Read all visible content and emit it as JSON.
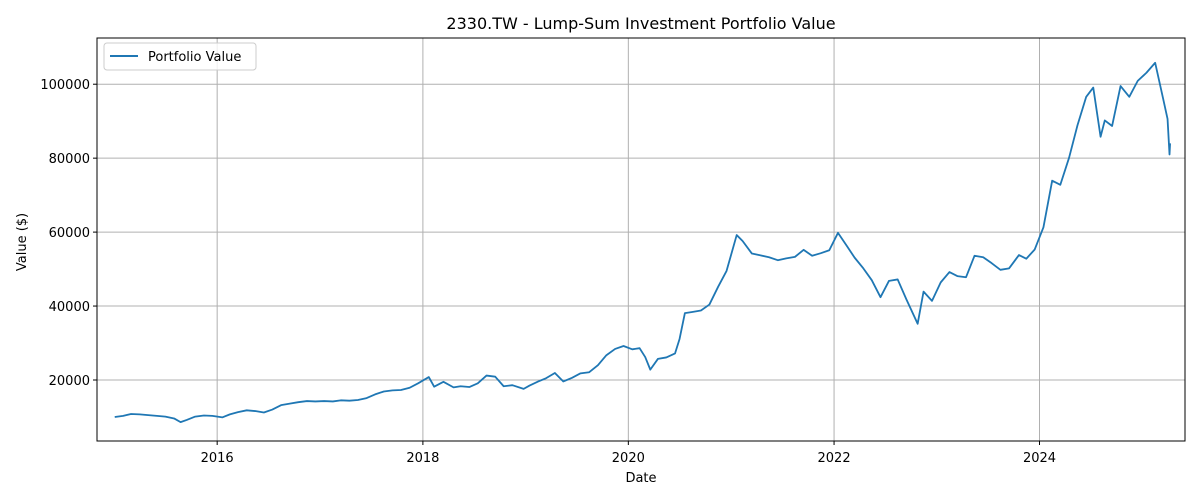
{
  "chart_data": {
    "type": "line",
    "title": "2330.TW - Lump-Sum Investment Portfolio Value",
    "xlabel": "Date",
    "ylabel": "Value ($)",
    "xlim": [
      "2014-10-31",
      "2025-06-01"
    ],
    "ylim": [
      3500,
      112500
    ],
    "x_ticks": [
      "2016-01-01",
      "2018-01-01",
      "2020-01-01",
      "2022-01-01",
      "2024-01-01"
    ],
    "x_tick_labels": [
      "2016",
      "2018",
      "2020",
      "2022",
      "2024"
    ],
    "y_ticks": [
      20000,
      40000,
      60000,
      80000,
      100000
    ],
    "y_tick_labels": [
      "20000",
      "40000",
      "60000",
      "80000",
      "100000"
    ],
    "grid": true,
    "legend_position": "top-left",
    "colors": {
      "series": "#1f77b4",
      "grid": "#b0b0b0",
      "axis": "#000000"
    },
    "series": [
      {
        "name": "Portfolio Value",
        "x": [
          "2015-01-02",
          "2015-02-01",
          "2015-03-01",
          "2015-04-01",
          "2015-05-01",
          "2015-06-01",
          "2015-07-01",
          "2015-08-01",
          "2015-08-24",
          "2015-09-15",
          "2015-10-15",
          "2015-11-15",
          "2015-12-15",
          "2016-01-20",
          "2016-02-15",
          "2016-03-15",
          "2016-04-15",
          "2016-05-15",
          "2016-06-15",
          "2016-07-15",
          "2016-08-15",
          "2016-09-15",
          "2016-10-15",
          "2016-11-15",
          "2016-12-15",
          "2017-01-15",
          "2017-02-15",
          "2017-03-15",
          "2017-04-15",
          "2017-05-15",
          "2017-06-15",
          "2017-07-15",
          "2017-08-15",
          "2017-09-15",
          "2017-10-15",
          "2017-11-15",
          "2017-12-15",
          "2018-01-22",
          "2018-02-10",
          "2018-03-15",
          "2018-04-20",
          "2018-05-15",
          "2018-06-15",
          "2018-07-15",
          "2018-08-15",
          "2018-09-15",
          "2018-10-15",
          "2018-11-15",
          "2018-12-25",
          "2019-01-15",
          "2019-02-15",
          "2019-03-15",
          "2019-04-15",
          "2019-05-15",
          "2019-06-15",
          "2019-07-15",
          "2019-08-15",
          "2019-09-15",
          "2019-10-15",
          "2019-11-15",
          "2019-12-15",
          "2020-01-15",
          "2020-02-10",
          "2020-03-01",
          "2020-03-19",
          "2020-04-15",
          "2020-05-15",
          "2020-06-15",
          "2020-07-01",
          "2020-07-20",
          "2020-08-15",
          "2020-09-15",
          "2020-10-15",
          "2020-11-15",
          "2020-12-15",
          "2021-01-20",
          "2021-02-10",
          "2021-03-15",
          "2021-04-15",
          "2021-05-15",
          "2021-06-15",
          "2021-07-15",
          "2021-08-15",
          "2021-09-15",
          "2021-10-15",
          "2021-11-15",
          "2021-12-15",
          "2022-01-15",
          "2022-02-15",
          "2022-03-15",
          "2022-04-15",
          "2022-05-15",
          "2022-06-15",
          "2022-07-15",
          "2022-08-15",
          "2022-09-15",
          "2022-10-25",
          "2022-11-15",
          "2022-12-15",
          "2023-01-15",
          "2023-02-15",
          "2023-03-15",
          "2023-04-15",
          "2023-05-15",
          "2023-06-15",
          "2023-07-15",
          "2023-08-15",
          "2023-09-15",
          "2023-10-20",
          "2023-11-15",
          "2023-12-15",
          "2024-01-15",
          "2024-02-15",
          "2024-03-15",
          "2024-04-15",
          "2024-05-15",
          "2024-06-15",
          "2024-07-10",
          "2024-08-05",
          "2024-08-20",
          "2024-09-15",
          "2024-10-15",
          "2024-11-15",
          "2024-12-15",
          "2025-01-15",
          "2025-02-15",
          "2025-03-15",
          "2025-03-31",
          "2025-04-07",
          "2025-04-09"
        ],
        "values": [
          10000,
          10300,
          10800,
          10700,
          10500,
          10300,
          10100,
          9600,
          8600,
          9200,
          10100,
          10400,
          10300,
          9900,
          10700,
          11300,
          11800,
          11600,
          11200,
          12000,
          13200,
          13600,
          14000,
          14300,
          14200,
          14300,
          14200,
          14500,
          14400,
          14600,
          15100,
          16100,
          16900,
          17200,
          17300,
          17900,
          19100,
          20800,
          18200,
          19500,
          18000,
          18300,
          18100,
          19100,
          21200,
          20900,
          18300,
          18600,
          17600,
          18500,
          19600,
          20500,
          21900,
          19600,
          20600,
          21800,
          22100,
          24000,
          26700,
          28400,
          29200,
          28300,
          28600,
          26200,
          22800,
          25700,
          26100,
          27200,
          31100,
          38100,
          38400,
          38800,
          40400,
          45200,
          49500,
          59200,
          57600,
          54200,
          53700,
          53200,
          52400,
          52900,
          53300,
          55200,
          53600,
          54300,
          55100,
          59800,
          56300,
          53100,
          50200,
          47000,
          42400,
          46800,
          47200,
          41800,
          35200,
          43900,
          41400,
          46400,
          49200,
          48100,
          47800,
          53600,
          53200,
          51600,
          49800,
          50200,
          53800,
          52800,
          55300,
          61300,
          73900,
          72800,
          80100,
          88900,
          96600,
          99100,
          85800,
          90200,
          88700,
          99500,
          96600,
          100900,
          103100,
          105800,
          96200,
          90600,
          81000,
          84000
        ]
      }
    ]
  }
}
